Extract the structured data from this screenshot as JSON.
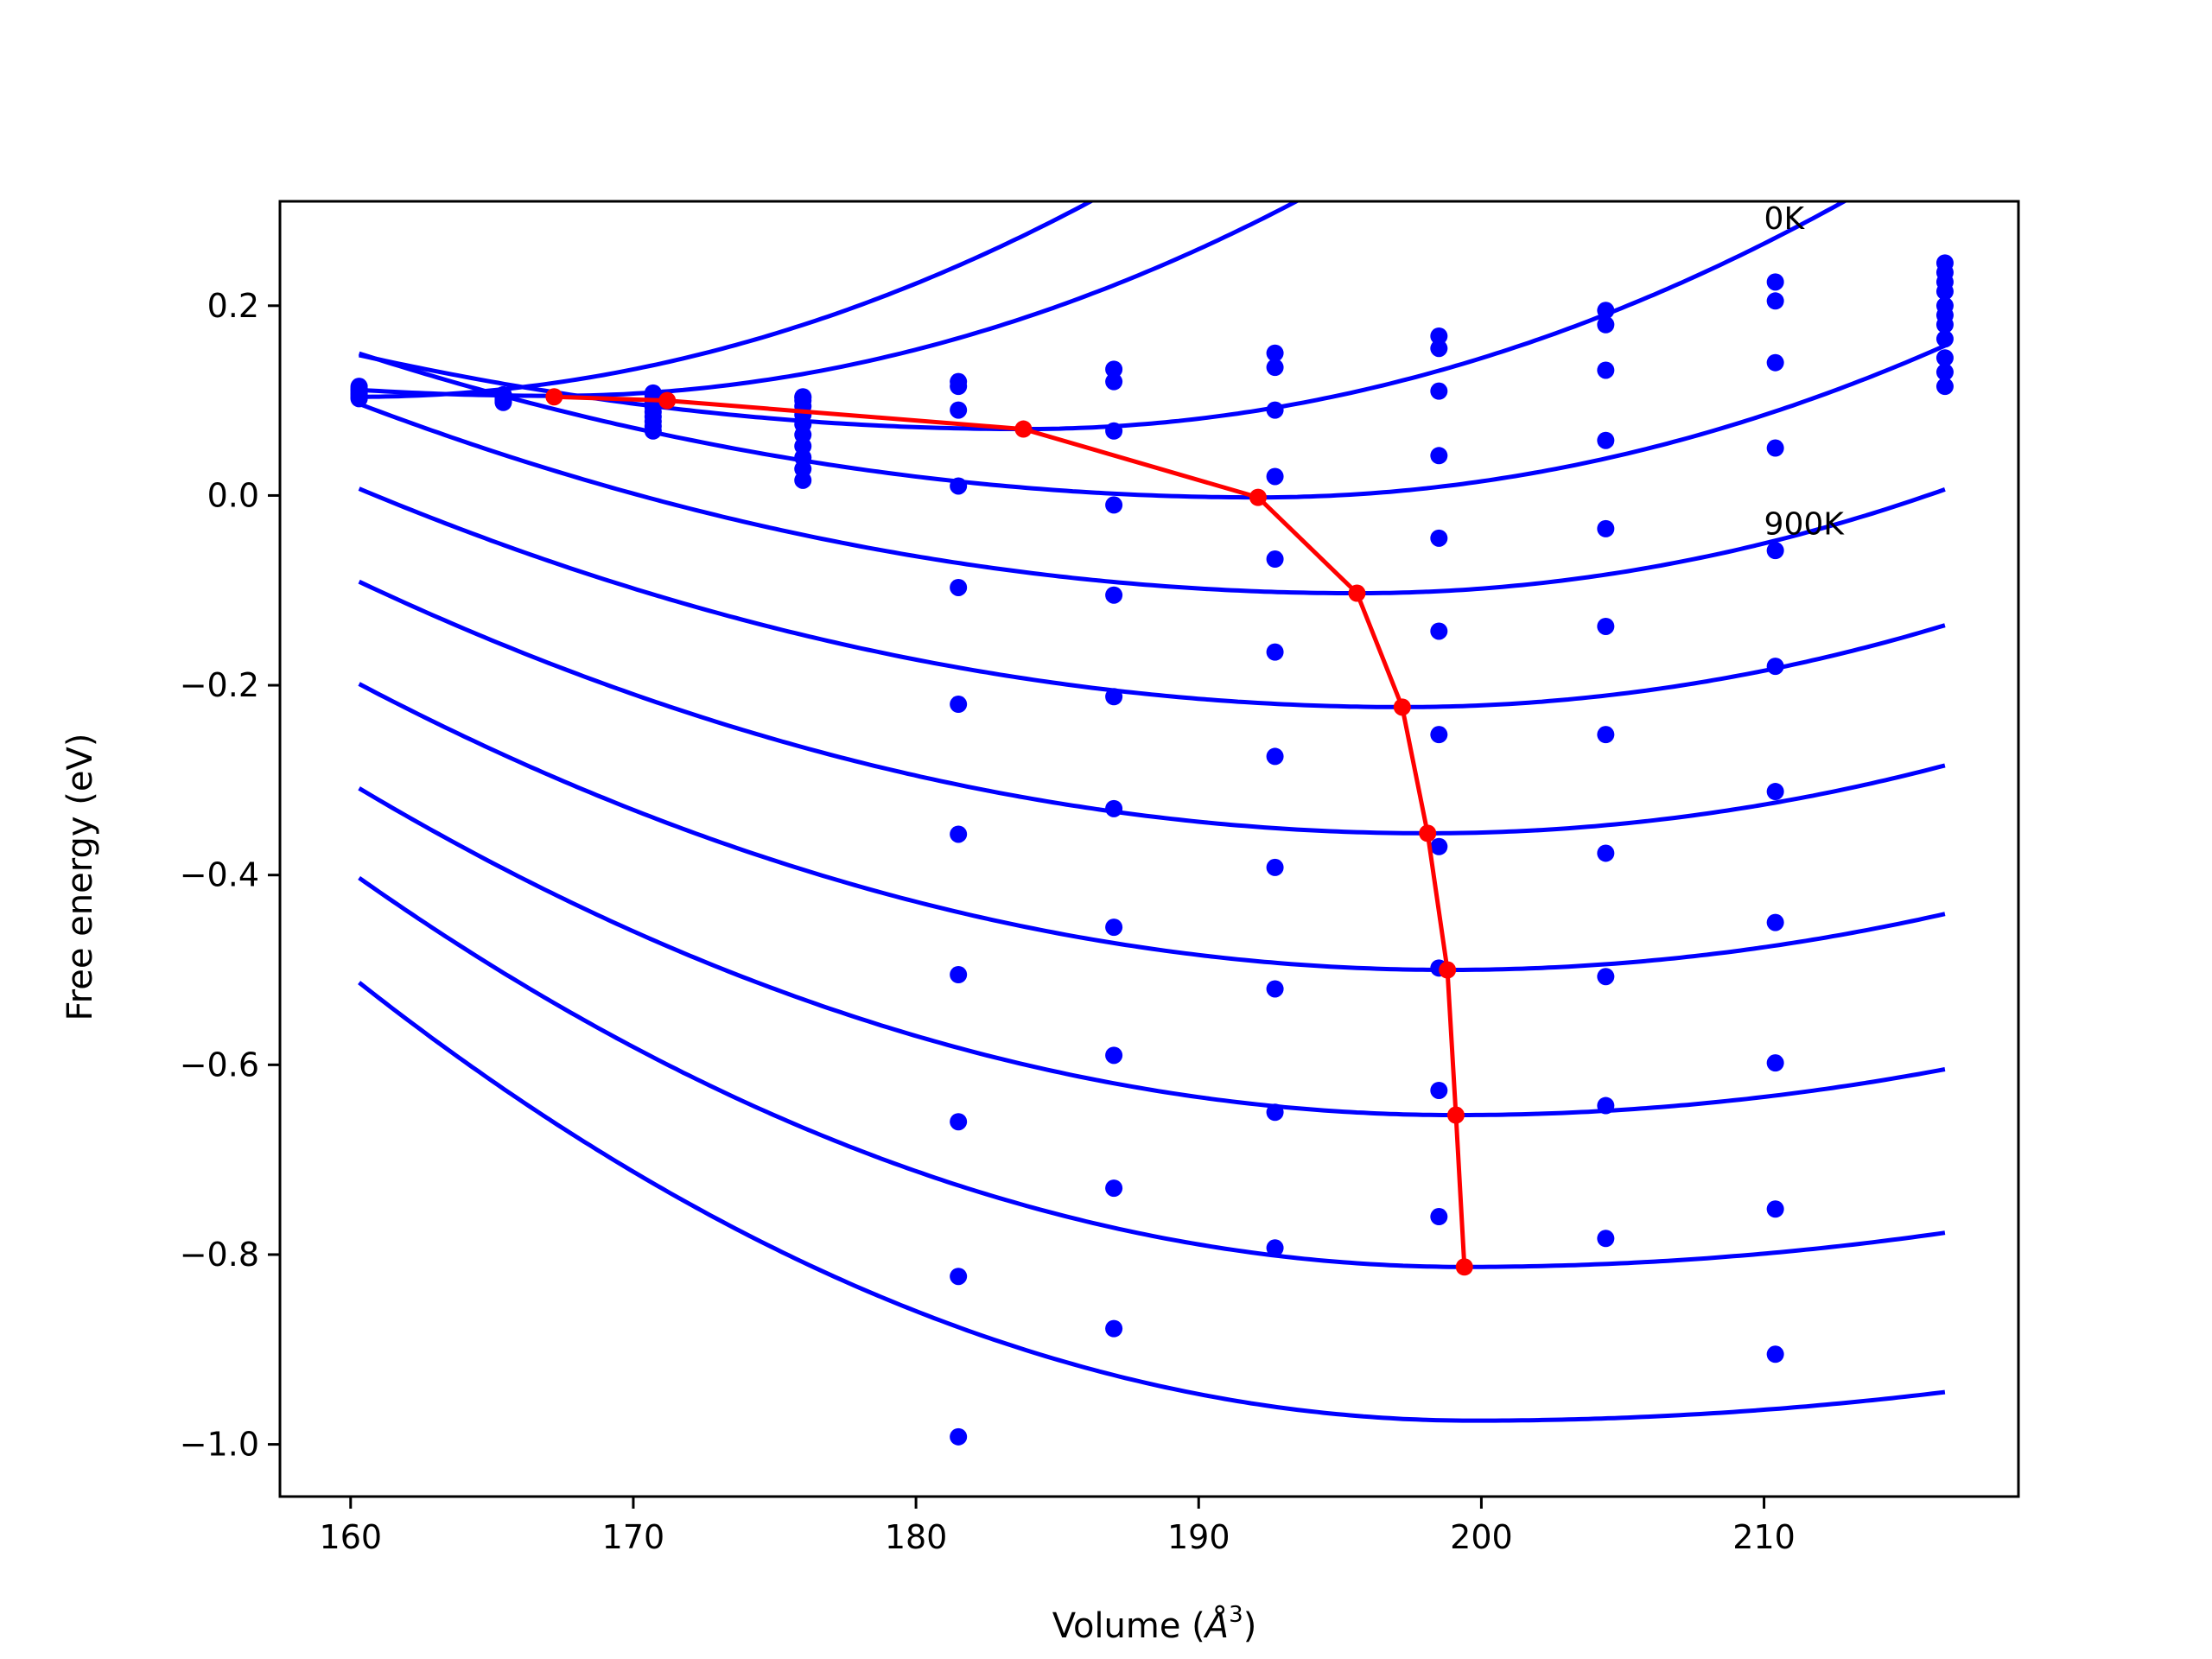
{
  "chart_data": {
    "type": "line",
    "xlabel_text": "Volume (",
    "xlabel_unit": "Å",
    "xlabel_sup": "3",
    "xlabel_close": ")",
    "ylabel": "Free energy (eV)",
    "xlim": [
      157.5,
      219
    ],
    "ylim": [
      -1.055,
      0.31
    ],
    "xticks": [
      160,
      170,
      180,
      190,
      200,
      210
    ],
    "yticks": [
      0.2,
      0.0,
      -0.2,
      -0.4,
      -0.6,
      -0.8,
      -1.0
    ],
    "ytick_labels": [
      "0.2",
      "0.0",
      "−0.2",
      "−0.4",
      "−0.6",
      "−0.8",
      "−1.0"
    ],
    "grid": false,
    "annotations": [
      {
        "text": "0K",
        "x": 210.0,
        "y": 0.292
      },
      {
        "text": "900K",
        "x": 210.0,
        "y": -0.03
      }
    ],
    "colors": {
      "fit": "#0000ff",
      "points": "#0000ff",
      "minima": "#ff0000"
    },
    "volumes": [
      160.3,
      165.4,
      170.7,
      176.0,
      181.5,
      187.0,
      192.7,
      198.5,
      204.4,
      210.4,
      216.4
    ],
    "fit_range": [
      160.3,
      216.4
    ],
    "series": [
      {
        "points": [
          0.102,
          0.106,
          0.108,
          0.104,
          0.12,
          0.133,
          0.15,
          0.168,
          0.195,
          0.225,
          0.245
        ],
        "fit_params": [
          0.104,
          160.3,
          0.104,
          0.242
        ]
      },
      {
        "points": [
          0.103,
          0.106,
          0.107,
          0.103,
          0.115,
          0.12,
          0.135,
          0.155,
          0.18,
          0.205,
          0.235
        ],
        "fit_params": [
          0.105,
          167.2,
          0.104,
          0.234
        ]
      },
      {
        "points": [
          0.104,
          0.106,
          0.105,
          0.1,
          0.09,
          0.068,
          0.09,
          0.11,
          0.132,
          0.14,
          0.225
        ],
        "fit_params": [
          0.07,
          183.8,
          0.111,
          0.224
        ]
      },
      {
        "points": [
          0.106,
          0.105,
          0.102,
          0.094,
          0.01,
          -0.01,
          0.02,
          0.042,
          0.058,
          0.05,
          0.215
        ],
        "fit_params": [
          -0.002,
          192.1,
          0.118,
          0.213
        ]
      },
      {
        "points": [
          0.107,
          0.104,
          0.098,
          0.085,
          -0.097,
          -0.105,
          -0.067,
          -0.045,
          -0.035,
          -0.058,
          0.2
        ],
        "fit_params": [
          -0.103,
          195.6,
          0.126,
          0.199
        ]
      },
      {
        "points": [
          0.108,
          0.103,
          0.093,
          0.075,
          -0.22,
          -0.212,
          -0.165,
          -0.143,
          -0.138,
          -0.18,
          0.19
        ],
        "fit_params": [
          -0.223,
          197.2,
          0.133,
          0.184
        ]
      },
      {
        "points": [
          0.11,
          0.102,
          0.088,
          0.064,
          -0.357,
          -0.33,
          -0.275,
          -0.252,
          -0.252,
          -0.312,
          0.18
        ],
        "fit_params": [
          -0.356,
          198.1,
          0.146,
          0.168
        ]
      },
      {
        "points": [
          0.111,
          0.101,
          0.083,
          0.052,
          -0.505,
          -0.455,
          -0.392,
          -0.37,
          -0.377,
          -0.45,
          0.165
        ],
        "fit_params": [
          -0.5,
          198.8,
          0.16,
          0.15
        ]
      },
      {
        "points": [
          0.112,
          0.1,
          0.078,
          0.04,
          -0.66,
          -0.59,
          -0.52,
          -0.498,
          -0.507,
          -0.598,
          0.145
        ],
        "fit_params": [
          -0.653,
          199.1,
          0.18,
          0.127
        ]
      },
      {
        "points": [
          0.113,
          0.099,
          0.073,
          0.028,
          -0.823,
          -0.73,
          -0.65,
          -0.627,
          -0.643,
          -0.752,
          0.13
        ],
        "fit_params": [
          -0.813,
          199.4,
          0.211,
          0.098
        ]
      },
      {
        "points": [
          0.115,
          0.098,
          0.068,
          0.016,
          -0.992,
          -0.878,
          -0.793,
          -0.76,
          -0.783,
          -0.905,
          0.115
        ],
        "fit_params": [
          -0.975,
          199.7,
          0.234,
          0.085
        ]
      }
    ],
    "minima": {
      "x": [
        167.2,
        171.2,
        183.8,
        192.1,
        195.6,
        197.2,
        198.1,
        198.8,
        199.1,
        199.4
      ],
      "y": [
        0.104,
        0.1,
        0.07,
        -0.002,
        -0.103,
        -0.223,
        -0.356,
        -0.5,
        -0.653,
        -0.813
      ]
    }
  }
}
